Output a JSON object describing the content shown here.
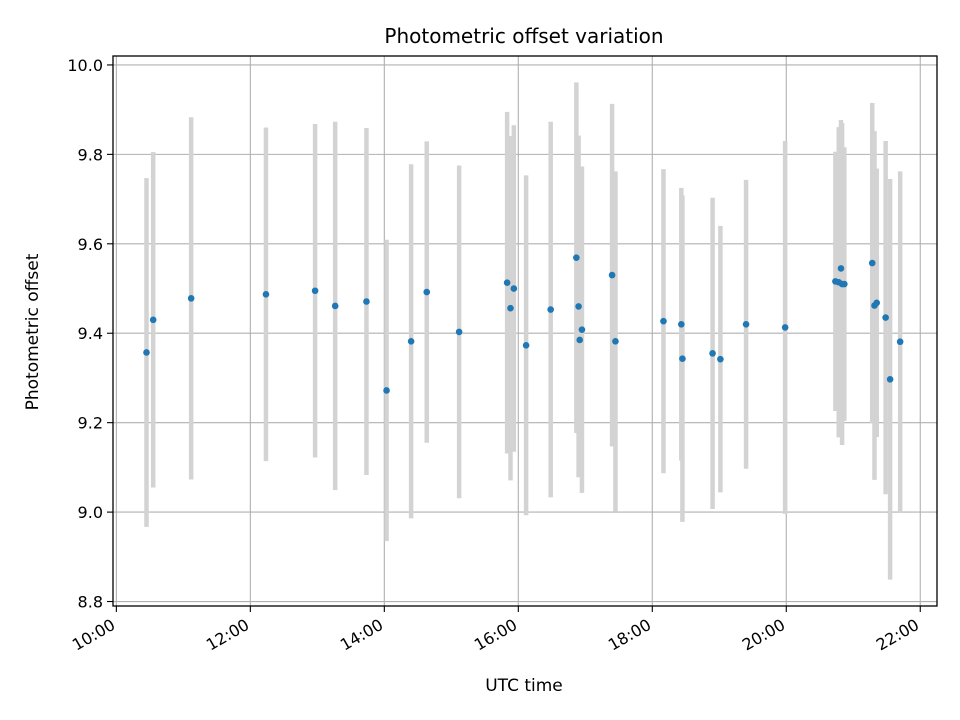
{
  "chart_data": {
    "type": "scatter",
    "title": "Photometric offset variation",
    "xlabel": "UTC time",
    "ylabel": "Photometric offset",
    "xlim": [
      "09:57",
      "22:15"
    ],
    "ylim": [
      8.79,
      10.02
    ],
    "x_ticks": [
      "10:00",
      "12:00",
      "14:00",
      "16:00",
      "18:00",
      "20:00",
      "22:00"
    ],
    "y_ticks": [
      "8.8",
      "9.0",
      "9.2",
      "9.4",
      "9.6",
      "9.8",
      "10.0"
    ],
    "grid": true,
    "point_color": "#1f77b4",
    "errorbar_color": "#d3d3d3",
    "series": [
      {
        "points": [
          {
            "x": "10:27",
            "y": 9.357,
            "err": 0.39
          },
          {
            "x": "10:33",
            "y": 9.43,
            "err": 0.375
          },
          {
            "x": "11:07",
            "y": 9.478,
            "err": 0.405
          },
          {
            "x": "12:14",
            "y": 9.487,
            "err": 0.373
          },
          {
            "x": "12:58",
            "y": 9.495,
            "err": 0.373
          },
          {
            "x": "13:16",
            "y": 9.461,
            "err": 0.412
          },
          {
            "x": "13:44",
            "y": 9.471,
            "err": 0.388
          },
          {
            "x": "14:02",
            "y": 9.272,
            "err": 0.337
          },
          {
            "x": "14:24",
            "y": 9.382,
            "err": 0.396
          },
          {
            "x": "14:38",
            "y": 9.492,
            "err": 0.337
          },
          {
            "x": "15:07",
            "y": 9.403,
            "err": 0.372
          },
          {
            "x": "15:50",
            "y": 9.513,
            "err": 0.382
          },
          {
            "x": "15:53",
            "y": 9.456,
            "err": 0.385
          },
          {
            "x": "15:56",
            "y": 9.5,
            "err": 0.365
          },
          {
            "x": "16:07",
            "y": 9.373,
            "err": 0.38
          },
          {
            "x": "16:29",
            "y": 9.453,
            "err": 0.42
          },
          {
            "x": "16:52",
            "y": 9.569,
            "err": 0.392
          },
          {
            "x": "16:54",
            "y": 9.46,
            "err": 0.382
          },
          {
            "x": "16:55",
            "y": 9.385,
            "err": 0.305
          },
          {
            "x": "16:57",
            "y": 9.408,
            "err": 0.365
          },
          {
            "x": "17:24",
            "y": 9.53,
            "err": 0.383
          },
          {
            "x": "17:27",
            "y": 9.382,
            "err": 0.38
          },
          {
            "x": "18:10",
            "y": 9.427,
            "err": 0.34
          },
          {
            "x": "18:26",
            "y": 9.42,
            "err": 0.305
          },
          {
            "x": "18:27",
            "y": 9.343,
            "err": 0.365
          },
          {
            "x": "18:54",
            "y": 9.355,
            "err": 0.348
          },
          {
            "x": "19:01",
            "y": 9.342,
            "err": 0.298
          },
          {
            "x": "19:24",
            "y": 9.42,
            "err": 0.323
          },
          {
            "x": "19:59",
            "y": 9.413,
            "err": 0.417
          },
          {
            "x": "20:44",
            "y": 9.516,
            "err": 0.29
          },
          {
            "x": "20:47",
            "y": 9.514,
            "err": 0.347
          },
          {
            "x": "20:49",
            "y": 9.545,
            "err": 0.332
          },
          {
            "x": "20:50",
            "y": 9.51,
            "err": 0.36
          },
          {
            "x": "20:52",
            "y": 9.51,
            "err": 0.306
          },
          {
            "x": "21:17",
            "y": 9.557,
            "err": 0.358
          },
          {
            "x": "21:19",
            "y": 9.462,
            "err": 0.39
          },
          {
            "x": "21:21",
            "y": 9.468,
            "err": 0.3
          },
          {
            "x": "21:29",
            "y": 9.435,
            "err": 0.395
          },
          {
            "x": "21:33",
            "y": 9.297,
            "err": 0.448
          },
          {
            "x": "21:42",
            "y": 9.381,
            "err": 0.381
          }
        ]
      }
    ]
  }
}
